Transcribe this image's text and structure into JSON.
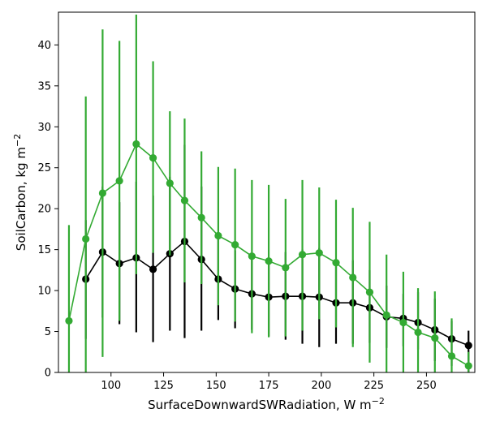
{
  "chart_data": {
    "type": "line",
    "xlabel": "SurfaceDownwardSWRadiation,  W m",
    "xlabel_exp": "−2",
    "ylabel": "SoilCarbon,  kg m",
    "ylabel_exp": "−2",
    "xlim": [
      75,
      273
    ],
    "ylim": [
      0,
      44
    ],
    "xticks": [
      100,
      125,
      150,
      175,
      200,
      225,
      250
    ],
    "yticks": [
      0,
      5,
      10,
      15,
      20,
      25,
      30,
      35,
      40
    ],
    "grid": false,
    "series": [
      {
        "color": "#000000",
        "x": [
          88,
          96,
          104,
          112,
          120,
          128,
          135,
          143,
          151,
          159,
          167,
          175,
          183,
          191,
          199,
          207,
          215,
          223,
          231,
          239,
          246,
          254,
          262,
          270
        ],
        "y": [
          11.4,
          14.7,
          13.3,
          14.0,
          12.6,
          14.5,
          16.0,
          13.8,
          11.4,
          10.2,
          9.6,
          9.2,
          9.3,
          9.3,
          9.2,
          8.5,
          8.5,
          7.9,
          6.8,
          6.6,
          6.1,
          5.2,
          4.1,
          3.3
        ],
        "err_low": [
          4.1,
          6.7,
          5.9,
          4.9,
          3.7,
          5.1,
          4.2,
          5.1,
          6.4,
          5.4,
          5.2,
          4.4,
          4.0,
          3.5,
          3.1,
          3.5,
          3.5,
          3.6,
          3.0,
          3.2,
          2.8,
          1.4,
          0.8,
          0.0
        ],
        "err_high": [
          18.6,
          22.7,
          20.8,
          23.3,
          21.6,
          23.9,
          27.8,
          22.7,
          16.4,
          14.9,
          13.9,
          13.9,
          14.7,
          15.0,
          15.2,
          13.6,
          13.7,
          12.5,
          10.6,
          9.6,
          9.8,
          9.0,
          6.3,
          5.1
        ]
      },
      {
        "color": "#33aa33",
        "x": [
          80,
          88,
          96,
          104,
          112,
          120,
          128,
          135,
          143,
          151,
          159,
          167,
          175,
          183,
          191,
          199,
          207,
          215,
          223,
          231,
          239,
          246,
          254,
          262,
          270
        ],
        "y": [
          6.3,
          16.3,
          21.9,
          23.4,
          27.9,
          26.2,
          23.1,
          21.0,
          18.9,
          16.7,
          15.6,
          14.2,
          13.6,
          12.8,
          14.4,
          14.6,
          13.4,
          11.6,
          9.8,
          7.0,
          6.1,
          4.9,
          4.2,
          2.0,
          0.8
        ],
        "err_low": [
          0.0,
          0.0,
          1.9,
          6.3,
          12.0,
          14.6,
          14.3,
          11.0,
          10.8,
          8.2,
          6.2,
          4.8,
          4.3,
          4.4,
          5.1,
          6.5,
          5.5,
          3.1,
          1.2,
          0.0,
          0.0,
          0.0,
          0.0,
          0.0,
          0.0
        ],
        "err_high": [
          18.0,
          33.7,
          41.9,
          40.5,
          43.7,
          38.0,
          31.9,
          31.0,
          27.0,
          25.1,
          24.9,
          23.5,
          22.9,
          21.2,
          23.5,
          22.6,
          21.1,
          20.1,
          18.4,
          14.4,
          12.3,
          10.3,
          9.9,
          6.6,
          2.5
        ]
      }
    ]
  }
}
